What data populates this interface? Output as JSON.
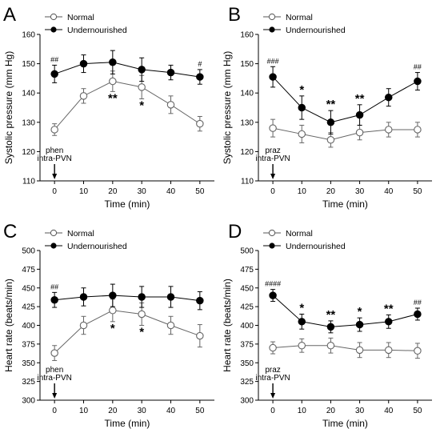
{
  "legend": {
    "normal": "Normal",
    "undernourished": "Undernourished"
  },
  "chart_data": [
    {
      "type": "line",
      "panel": "A",
      "x": [
        0,
        10,
        20,
        30,
        40,
        50
      ],
      "xlabel": "Time (min)",
      "ylabel": "Systolic pressure (mm Hg)",
      "xlim": [
        -5,
        55
      ],
      "ylim": [
        110,
        160
      ],
      "yticks": [
        110,
        120,
        130,
        140,
        150,
        160
      ],
      "annotation": [
        "phen",
        "intra-PVN"
      ],
      "series": [
        {
          "name": "Normal",
          "marker": "open",
          "values": [
            127.5,
            139,
            144,
            142,
            136,
            129.5
          ],
          "errors": [
            2,
            2.5,
            3.5,
            4,
            3,
            2.5
          ]
        },
        {
          "name": "Undernourished",
          "marker": "filled",
          "values": [
            146.5,
            150,
            150.5,
            148,
            147,
            145.5
          ],
          "errors": [
            3,
            3,
            4,
            4,
            2.5,
            2.5
          ]
        }
      ],
      "significance": [
        {
          "x": 0,
          "label": "##",
          "group": "Undernourished"
        },
        {
          "x": 50,
          "label": "#",
          "group": "Undernourished"
        },
        {
          "x": 20,
          "label": "**",
          "group": "Normal"
        },
        {
          "x": 30,
          "label": "*",
          "group": "Normal"
        }
      ]
    },
    {
      "type": "line",
      "panel": "B",
      "x": [
        0,
        10,
        20,
        30,
        40,
        50
      ],
      "xlabel": "Time (min)",
      "ylabel": "Systolic pressure (mm Hg)",
      "xlim": [
        -5,
        55
      ],
      "ylim": [
        110,
        160
      ],
      "yticks": [
        110,
        120,
        130,
        140,
        150,
        160
      ],
      "annotation": [
        "praz",
        "intra-PVN"
      ],
      "series": [
        {
          "name": "Normal",
          "marker": "open",
          "values": [
            128,
            126,
            124,
            126.5,
            127.5,
            127.5
          ],
          "errors": [
            3,
            3,
            2.5,
            2.5,
            2.5,
            2.5
          ]
        },
        {
          "name": "Undernourished",
          "marker": "filled",
          "values": [
            145.5,
            135,
            130,
            132.5,
            138.5,
            144
          ],
          "errors": [
            3.5,
            4,
            4,
            3.5,
            3,
            3
          ]
        }
      ],
      "significance": [
        {
          "x": 0,
          "label": "###",
          "group": "Undernourished"
        },
        {
          "x": 50,
          "label": "##",
          "group": "Undernourished"
        },
        {
          "x": 10,
          "label": "*",
          "group": "Undernourished"
        },
        {
          "x": 20,
          "label": "**",
          "group": "Undernourished"
        },
        {
          "x": 30,
          "label": "**",
          "group": "Undernourished"
        }
      ]
    },
    {
      "type": "line",
      "panel": "C",
      "x": [
        0,
        10,
        20,
        30,
        40,
        50
      ],
      "xlabel": "Time (min)",
      "ylabel": "Heart rate (beats/min)",
      "xlim": [
        -5,
        55
      ],
      "ylim": [
        300,
        500
      ],
      "yticks": [
        300,
        325,
        350,
        375,
        400,
        425,
        450,
        475,
        500
      ],
      "annotation": [
        "phen",
        "intra-PVN"
      ],
      "series": [
        {
          "name": "Normal",
          "marker": "open",
          "values": [
            363,
            400,
            420,
            415,
            400,
            386
          ],
          "errors": [
            10,
            12,
            15,
            15,
            12,
            15
          ]
        },
        {
          "name": "Undernourished",
          "marker": "filled",
          "values": [
            434,
            438,
            440,
            438,
            438,
            433
          ],
          "errors": [
            10,
            12,
            15,
            14,
            14,
            12
          ]
        }
      ],
      "significance": [
        {
          "x": 0,
          "label": "##",
          "group": "Undernourished"
        },
        {
          "x": 20,
          "label": "*",
          "group": "Normal"
        },
        {
          "x": 30,
          "label": "*",
          "group": "Normal"
        }
      ]
    },
    {
      "type": "line",
      "panel": "D",
      "x": [
        0,
        10,
        20,
        30,
        40,
        50
      ],
      "xlabel": "Time (min)",
      "ylabel": "Heart rate (beats/min)",
      "xlim": [
        -5,
        55
      ],
      "ylim": [
        300,
        500
      ],
      "yticks": [
        300,
        325,
        350,
        375,
        400,
        425,
        450,
        475,
        500
      ],
      "annotation": [
        "praz",
        "intra-PVN"
      ],
      "series": [
        {
          "name": "Normal",
          "marker": "open",
          "values": [
            370,
            373,
            373,
            367,
            367,
            366
          ],
          "errors": [
            8,
            9,
            10,
            10,
            10,
            10
          ]
        },
        {
          "name": "Undernourished",
          "marker": "filled",
          "values": [
            440,
            405,
            398,
            401,
            405,
            415
          ],
          "errors": [
            8,
            10,
            8,
            9,
            9,
            8
          ]
        }
      ],
      "significance": [
        {
          "x": 0,
          "label": "####",
          "group": "Undernourished"
        },
        {
          "x": 50,
          "label": "##",
          "group": "Undernourished"
        },
        {
          "x": 10,
          "label": "*",
          "group": "Undernourished"
        },
        {
          "x": 20,
          "label": "**",
          "group": "Undernourished"
        },
        {
          "x": 30,
          "label": "*",
          "group": "Undernourished"
        },
        {
          "x": 40,
          "label": "**",
          "group": "Undernourished"
        }
      ]
    }
  ]
}
